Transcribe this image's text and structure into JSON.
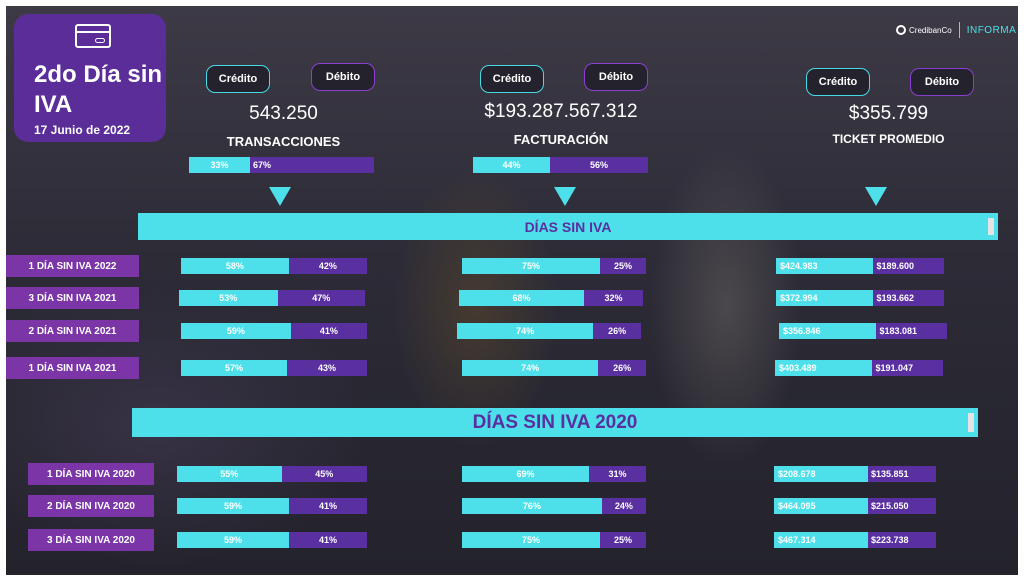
{
  "header": {
    "title": "2do Día sin IVA",
    "date": "17 Junio de 2022",
    "card_icon": "credit-card-icon"
  },
  "logo": {
    "brand": "CredibanCo",
    "partner": "INFORMA"
  },
  "colors": {
    "credit": "#4ee0ea",
    "debit": "#5a2fa0",
    "title_card": "#5b2d99",
    "row_label": "#7b35a6"
  },
  "labels": {
    "credit": "Crédito",
    "debit": "Débito"
  },
  "metrics": {
    "transacciones": {
      "value": "543.250",
      "label": "TRANSACCIONES",
      "credit_pct": "33%",
      "debit_pct": "67%"
    },
    "facturacion": {
      "value": "$193.287.567.312",
      "label": "FACTURACIÓN",
      "credit_pct": "44%",
      "debit_pct": "56%"
    },
    "ticket": {
      "value": "$355.799",
      "label": "TICKET PROMEDIO"
    }
  },
  "section1": {
    "title": "DÍAS SIN IVA",
    "rows": [
      {
        "label": "1 DÍA SIN IVA 2022",
        "trans": [
          "58%",
          "42%"
        ],
        "fact": [
          "75%",
          "25%"
        ],
        "ticket": [
          "$424.983",
          "$189.600"
        ]
      },
      {
        "label": "3 DÍA SIN IVA 2021",
        "trans": [
          "53%",
          "47%"
        ],
        "fact": [
          "68%",
          "32%"
        ],
        "ticket": [
          "$372.994",
          "$193.662"
        ]
      },
      {
        "label": "2 DÍA SIN IVA 2021",
        "trans": [
          "59%",
          "41%"
        ],
        "fact": [
          "74%",
          "26%"
        ],
        "ticket": [
          "$356.846",
          "$183.081"
        ]
      },
      {
        "label": "1 DÍA SIN IVA 2021",
        "trans": [
          "57%",
          "43%"
        ],
        "fact": [
          "74%",
          "26%"
        ],
        "ticket": [
          "$403.489",
          "$191.047"
        ]
      }
    ]
  },
  "section2": {
    "title": "DÍAS SIN IVA 2020",
    "rows": [
      {
        "label": "1 DÍA SIN IVA 2020",
        "trans": [
          "55%",
          "45%"
        ],
        "fact": [
          "69%",
          "31%"
        ],
        "ticket": [
          "$208.678",
          "$135.851"
        ]
      },
      {
        "label": "2 DÍA SIN IVA 2020",
        "trans": [
          "59%",
          "41%"
        ],
        "fact": [
          "76%",
          "24%"
        ],
        "ticket": [
          "$464.095",
          "$215.050"
        ]
      },
      {
        "label": "3 DÍA SIN IVA 2020",
        "trans": [
          "59%",
          "41%"
        ],
        "fact": [
          "75%",
          "25%"
        ],
        "ticket": [
          "$467.314",
          "$223.738"
        ]
      }
    ]
  }
}
